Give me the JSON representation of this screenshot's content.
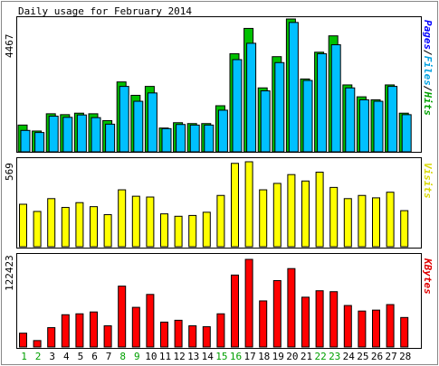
{
  "chart_data": [
    {
      "type": "bar",
      "title": "Daily usage for February 2014",
      "ymax_label": "4467",
      "legend": [
        "Pages",
        "Files",
        "Hits"
      ],
      "colors": {
        "pages": "#0000ff",
        "files": "#00c0ff",
        "hits": "#00c000"
      },
      "x": [
        "1",
        "2",
        "3",
        "4",
        "5",
        "6",
        "7",
        "8",
        "9",
        "10",
        "11",
        "12",
        "13",
        "14",
        "15",
        "16",
        "17",
        "18",
        "19",
        "20",
        "21",
        "22",
        "23",
        "24",
        "25",
        "26",
        "27",
        "28"
      ],
      "weekend_days": [
        "1",
        "2",
        "8",
        "9",
        "15",
        "16",
        "22",
        "23"
      ],
      "series": [
        {
          "name": "Hits",
          "values": [
            900,
            700,
            1280,
            1250,
            1300,
            1280,
            1050,
            2350,
            1900,
            2200,
            800,
            980,
            950,
            950,
            1550,
            3300,
            4150,
            2150,
            3200,
            4467,
            2450,
            3350,
            3900,
            2250,
            1850,
            1750,
            2250,
            1300
          ]
        },
        {
          "name": "Files",
          "values": [
            720,
            650,
            1200,
            1160,
            1240,
            1150,
            930,
            2200,
            1700,
            1980,
            780,
            920,
            900,
            900,
            1400,
            3100,
            3650,
            2050,
            3000,
            4350,
            2400,
            3300,
            3600,
            2150,
            1750,
            1700,
            2200,
            1250
          ]
        }
      ]
    },
    {
      "type": "bar",
      "ymax_label": "569",
      "legend": [
        "Visits"
      ],
      "colors": {
        "visits": "#ffff00"
      },
      "series": [
        {
          "name": "Visits",
          "values": [
            265,
            220,
            300,
            245,
            275,
            250,
            200,
            355,
            315,
            310,
            205,
            190,
            195,
            215,
            320,
            520,
            530,
            355,
            395,
            450,
            410,
            465,
            370,
            300,
            320,
            305,
            340,
            225
          ]
        }
      ]
    },
    {
      "type": "bar",
      "ymax_label": "122423",
      "legend": [
        "KBytes"
      ],
      "colors": {
        "kbytes": "#ff0000"
      },
      "series": [
        {
          "name": "KBytes",
          "values": [
            15000,
            7000,
            21000,
            35000,
            36000,
            38000,
            23000,
            66000,
            43000,
            57000,
            27000,
            29000,
            23000,
            22000,
            36000,
            78000,
            95000,
            50000,
            72000,
            85000,
            54000,
            61000,
            60000,
            45000,
            39000,
            40000,
            46000,
            32000
          ]
        }
      ]
    }
  ]
}
